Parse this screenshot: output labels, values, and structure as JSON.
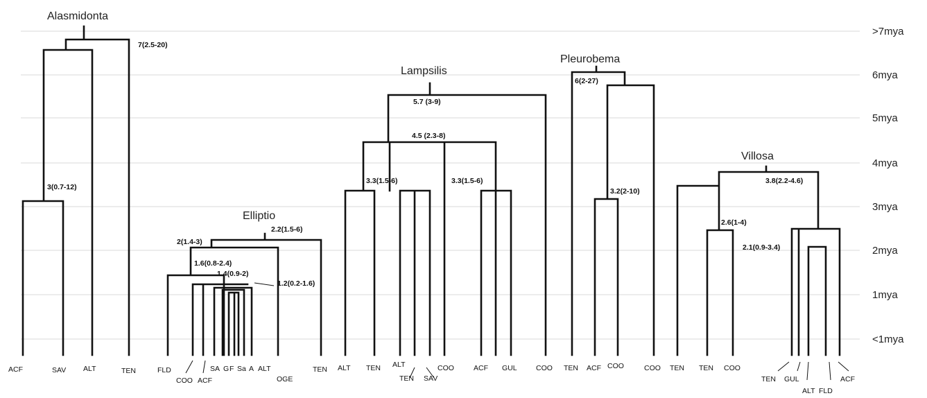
{
  "time_axis": [
    ">7mya",
    "6mya",
    "5mya",
    "4mya",
    "3mya",
    "2mya",
    "1mya",
    "<1mya"
  ],
  "trees": [
    {
      "name": "Alasmidonta",
      "leaves": [
        "ACF",
        "SAV",
        "ALT",
        "TEN"
      ],
      "nodes": [
        "7(2.5-20)",
        "3(0.7-12)"
      ]
    },
    {
      "name": "Elliptio",
      "leaves": [
        "FLD",
        "COO",
        "ACF",
        "SA",
        "G",
        "F",
        "Sa",
        "A",
        "ALT",
        "OGE",
        "TEN"
      ],
      "nodes": [
        "2.2(1.5-6)",
        "2(1.4-3)",
        "1.6(0.8-2.4)",
        "1.4(0.9-2)",
        "1.2(0.2-1.6)"
      ]
    },
    {
      "name": "Lampsilis",
      "leaves": [
        "ALT",
        "TEN",
        "ALT",
        "TEN",
        "SAV",
        "COO",
        "ACF",
        "GUL",
        "COO"
      ],
      "nodes": [
        "5.7 (3-9)",
        "4.5 (2.3-8)",
        "3.3(1.5-6)",
        "3.3(1.5-6)"
      ]
    },
    {
      "name": "Pleurobema",
      "leaves": [
        "TEN",
        "ACF",
        "COO",
        "COO"
      ],
      "nodes": [
        "6(2-27)",
        "3.2(2-10)"
      ]
    },
    {
      "name": "Villosa",
      "leaves": [
        "TEN",
        "TEN",
        "COO",
        "TEN",
        "GUL",
        "ALT",
        "FLD",
        "ACF"
      ],
      "nodes": [
        "3.8(2.2-4.6)",
        "2.6(1-4)",
        "2.1(0.9-3.4)"
      ]
    }
  ]
}
